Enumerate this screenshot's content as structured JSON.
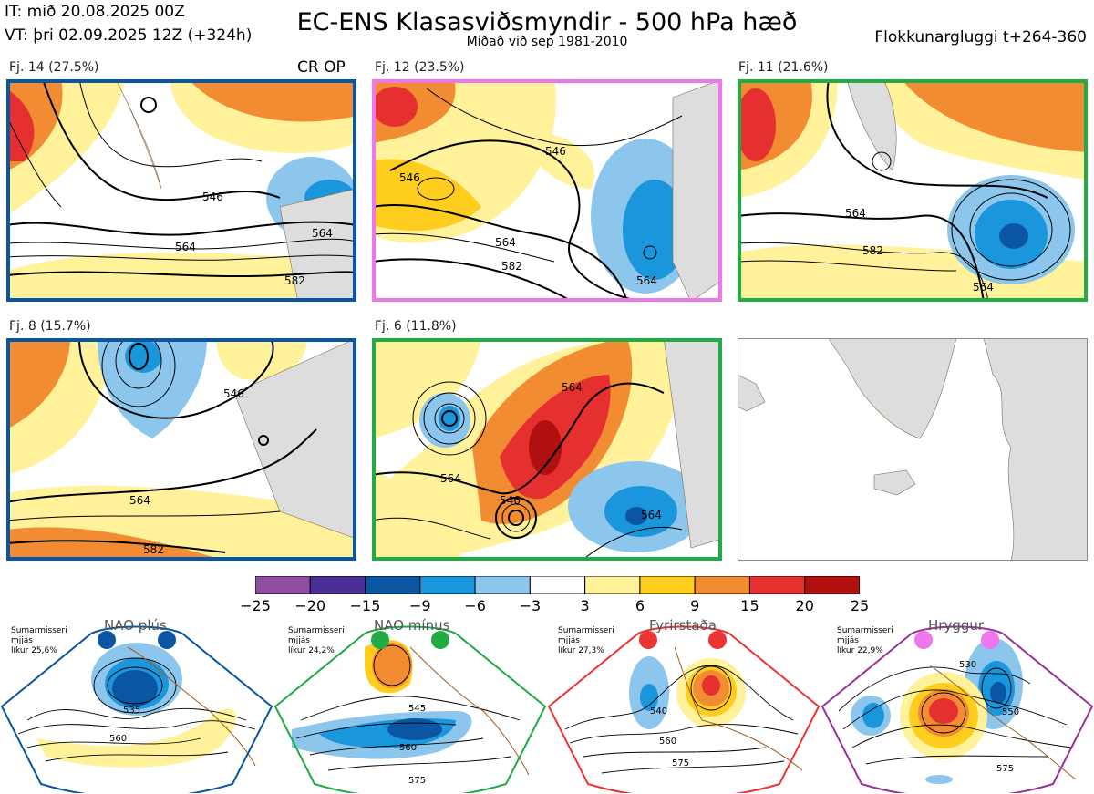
{
  "header": {
    "issue_time": "IT: mið 20.08.2025 00Z",
    "valid_time": "VT: þri 02.09.2025 12Z  (+324h)",
    "title": "EC-ENS Klasasviðsmyndir - 500 hPa hæð",
    "subtitle": "Miðað við sep 1981-2010",
    "window": "Flokkunargluggi t+264-360"
  },
  "clusters": [
    {
      "label": "Fj. 14 (27.5%)",
      "frame_color": "#0a56a3",
      "extra_label": "CR OP",
      "contours": [
        "546",
        "564",
        "582",
        "564"
      ]
    },
    {
      "label": "Fj. 12 (23.5%)",
      "frame_color": "#ee77ee",
      "extra_label": "",
      "contours": [
        "546",
        "546",
        "564",
        "582",
        "564"
      ]
    },
    {
      "label": "Fj. 11 (21.6%)",
      "frame_color": "#22aa44",
      "extra_label": "",
      "contours": [
        "564",
        "582",
        "564"
      ]
    },
    {
      "label": "Fj. 8 (15.7%)",
      "frame_color": "#0a56a3",
      "extra_label": "",
      "contours": [
        "546",
        "564",
        "582"
      ]
    },
    {
      "label": "Fj. 6 (11.8%)",
      "frame_color": "#22aa44",
      "extra_label": "",
      "contours": [
        "564",
        "564",
        "546",
        "564"
      ]
    }
  ],
  "colorbar": {
    "ticks": [
      "−25",
      "−20",
      "−15",
      "−9",
      "−6",
      "−3",
      "3",
      "6",
      "9",
      "15",
      "20",
      "25"
    ],
    "colors": [
      "#8e4fa0",
      "#4a2f94",
      "#0a56a3",
      "#1a96dc",
      "#8cc6ec",
      "#ffffff",
      "#fff29a",
      "#ffcd1e",
      "#f28c32",
      "#e63030",
      "#b01010"
    ]
  },
  "regimes": [
    {
      "name": "NAO plús",
      "season": "Sumarmisseri",
      "mean": "mjjás",
      "prob": "líkur 25,6%",
      "color": "#0a56a3",
      "contours": [
        "535",
        "560"
      ]
    },
    {
      "name": "NAO mínus",
      "season": "Sumarmisseri",
      "mean": "mjjás",
      "prob": "líkur 24,2%",
      "color": "#22aa44",
      "contours": [
        "545",
        "560",
        "575"
      ]
    },
    {
      "name": "Fyrirstaða",
      "season": "Sumarmisseri",
      "mean": "mjjás",
      "prob": "líkur 27,3%",
      "color": "#ee3333",
      "contours": [
        "540",
        "560",
        "575"
      ]
    },
    {
      "name": "Hryggur",
      "season": "Sumarmisseri",
      "mean": "mjjás",
      "prob": "líkur 22,9%",
      "color": "#993399",
      "contours": [
        "530",
        "550",
        "575"
      ]
    }
  ]
}
